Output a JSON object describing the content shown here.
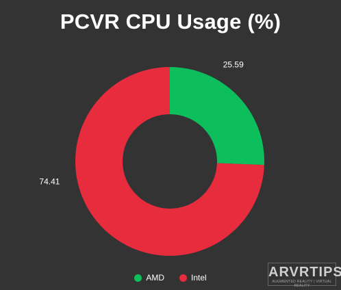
{
  "chart_data": {
    "type": "pie",
    "donut": true,
    "title": "PCVR CPU Usage (%)",
    "categories": [
      "AMD",
      "Intel"
    ],
    "values": [
      25.59,
      74.41
    ],
    "colors": [
      "#0cbf5c",
      "#e72c3e"
    ],
    "data_labels": [
      "25.59",
      "74.41"
    ],
    "legend_position": "bottom"
  },
  "watermark": {
    "logo": "ARVRTIPS",
    "tagline": "AUGMENTED REALITY | VIRTUAL REALITY"
  },
  "colors": {
    "background": "#333333",
    "text": "#ffffff"
  }
}
